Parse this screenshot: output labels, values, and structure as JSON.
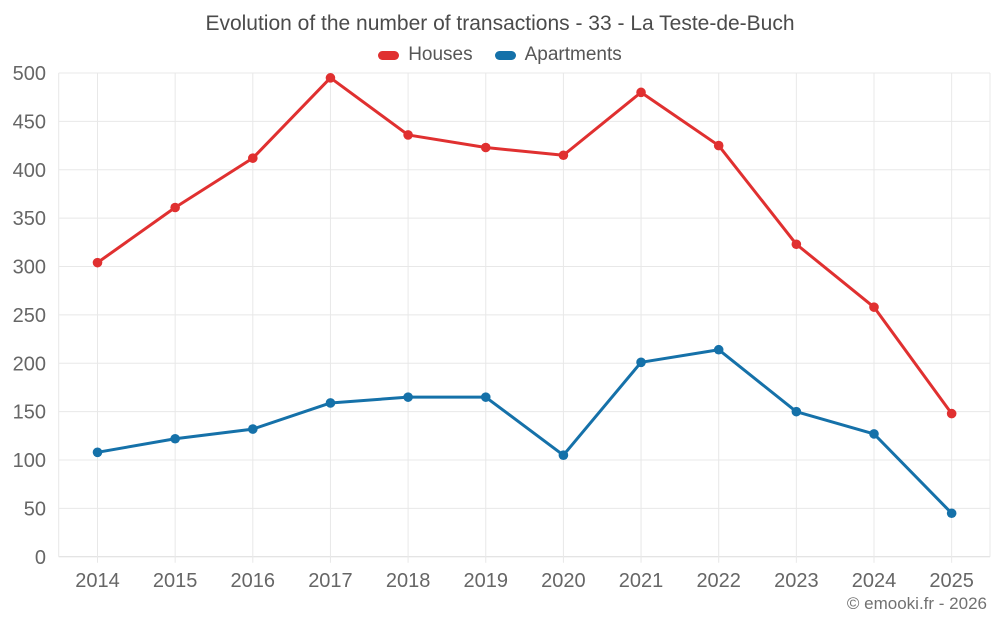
{
  "chart": {
    "title": "Evolution of the number of transactions - 33 - La Teste-de-Buch",
    "copyright": "© emooki.fr - 2026"
  },
  "legend": [
    {
      "label": "Houses",
      "color": "#e03030"
    },
    {
      "label": "Apartments",
      "color": "#1571a9"
    }
  ],
  "chart_data": {
    "type": "line",
    "title": "Evolution of the number of transactions - 33 - La Teste-de-Buch",
    "categories": [
      "2014",
      "2015",
      "2016",
      "2017",
      "2018",
      "2019",
      "2020",
      "2021",
      "2022",
      "2023",
      "2024",
      "2025"
    ],
    "series": [
      {
        "name": "Houses",
        "color": "#e03030",
        "values": [
          304,
          361,
          412,
          495,
          436,
          423,
          415,
          480,
          425,
          323,
          258,
          148
        ]
      },
      {
        "name": "Apartments",
        "color": "#1571a9",
        "values": [
          108,
          122,
          132,
          159,
          165,
          165,
          105,
          201,
          214,
          150,
          127,
          45
        ]
      }
    ],
    "xlabel": "",
    "ylabel": "",
    "ylim": [
      0,
      500
    ],
    "yticks": [
      0,
      50,
      100,
      150,
      200,
      250,
      300,
      350,
      400,
      450,
      500
    ],
    "grid": true,
    "legend_position": "top",
    "grid_color": "#e8e8e8",
    "axis_line_color": "#dcdcdc"
  }
}
